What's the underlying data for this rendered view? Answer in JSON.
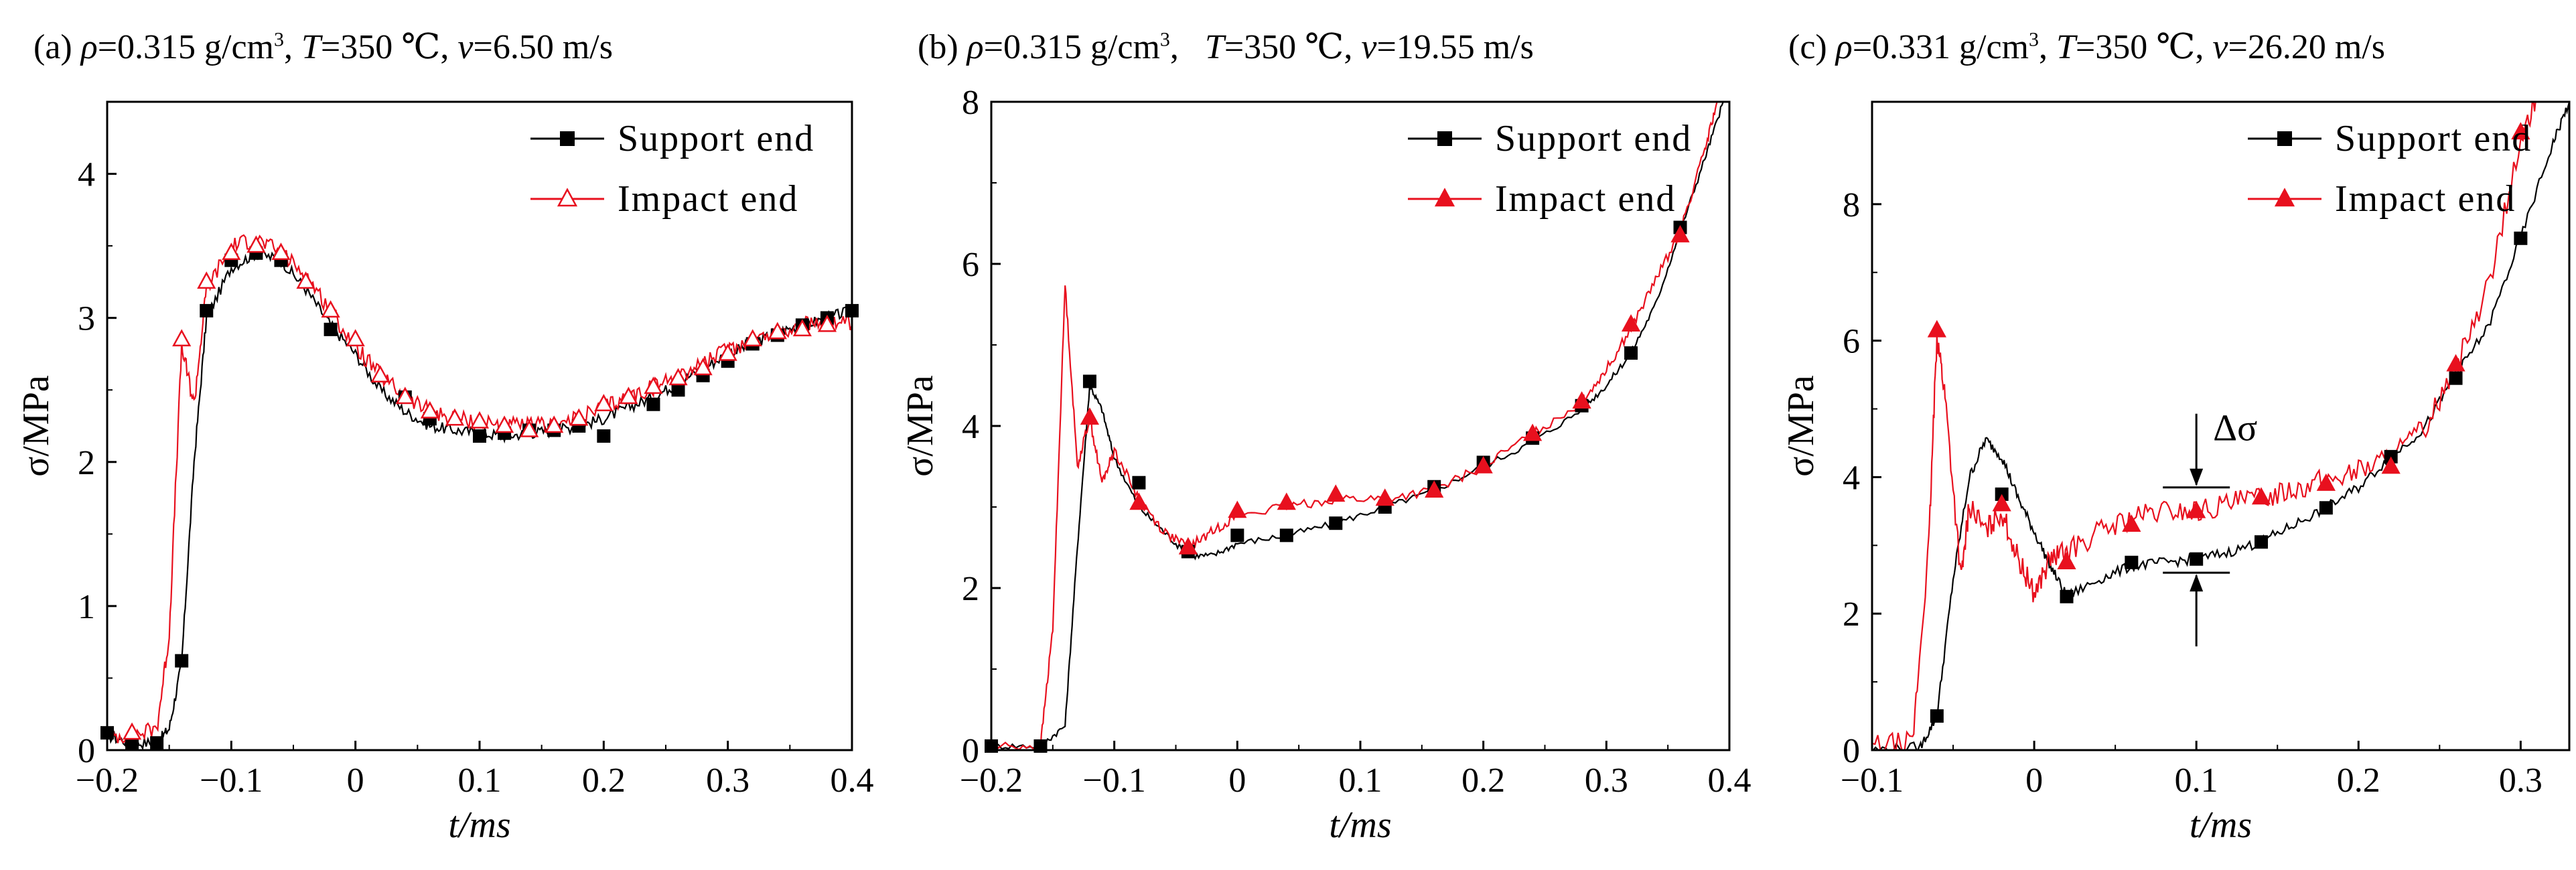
{
  "panels": [
    {
      "label": "(a)",
      "rho": "0.315 g/cm",
      "T": "350 ℃",
      "v": "6.50 m/s"
    },
    {
      "label": "(b)",
      "rho": "0.315 g/cm",
      "T": "350 ℃",
      "v": "19.55 m/s"
    },
    {
      "label": "(c)",
      "rho": "0.331 g/cm",
      "T": "350 ℃",
      "v": "26.20 m/s"
    }
  ],
  "title_symbols": {
    "rho": "ρ",
    "T": "T",
    "v": "v",
    "cube": "3"
  },
  "chart_data": [
    {
      "type": "line",
      "ylabel": "σ/MPa",
      "xlabel": "t/ms",
      "xlim": [
        -0.2,
        0.4
      ],
      "ylim": [
        0,
        4.5
      ],
      "xticks": [
        -0.2,
        -0.1,
        0,
        0.1,
        0.2,
        0.3,
        0.4
      ],
      "xtick_labels": [
        "−0.2",
        "−0.1",
        "0",
        "0.1",
        "0.2",
        "0.3",
        "0.4"
      ],
      "yticks": [
        0,
        1,
        2,
        3,
        4
      ],
      "ytick_labels": [
        "0",
        "1",
        "2",
        "3",
        "4"
      ],
      "legend_position": "top-right",
      "series": [
        {
          "name": "Support end",
          "color": "#000000",
          "marker": "filled-square",
          "x": [
            -0.2,
            -0.18,
            -0.16,
            -0.15,
            -0.14,
            -0.13,
            -0.12,
            -0.1,
            -0.08,
            -0.06,
            -0.04,
            -0.02,
            0,
            0.02,
            0.04,
            0.06,
            0.08,
            0.1,
            0.12,
            0.14,
            0.16,
            0.18,
            0.2,
            0.22,
            0.24,
            0.26,
            0.28,
            0.3,
            0.32,
            0.34,
            0.36,
            0.38,
            0.4
          ],
          "y": [
            0.1,
            0.05,
            0.05,
            0.15,
            0.6,
            2.0,
            3.0,
            3.35,
            3.45,
            3.4,
            3.2,
            2.95,
            2.75,
            2.5,
            2.35,
            2.25,
            2.22,
            2.2,
            2.18,
            2.2,
            2.22,
            2.25,
            2.3,
            2.38,
            2.45,
            2.55,
            2.65,
            2.75,
            2.82,
            2.9,
            2.95,
            3.0,
            3.05
          ],
          "markers_x": [
            -0.2,
            -0.18,
            -0.16,
            -0.14,
            -0.12,
            -0.1,
            -0.08,
            -0.06,
            -0.02,
            0.04,
            0.06,
            0.1,
            0.12,
            0.14,
            0.16,
            0.18,
            0.2,
            0.24,
            0.26,
            0.28,
            0.3,
            0.32,
            0.34,
            0.36,
            0.38,
            0.4
          ],
          "markers_y": [
            0.12,
            0.05,
            0.05,
            0.62,
            3.05,
            3.4,
            3.45,
            3.4,
            2.92,
            2.45,
            2.3,
            2.18,
            2.2,
            2.22,
            2.22,
            2.25,
            2.18,
            2.4,
            2.5,
            2.6,
            2.7,
            2.82,
            2.88,
            2.95,
            3.0,
            3.05
          ]
        },
        {
          "name": "Impact end",
          "color": "#e8101e",
          "marker": "open-triangle",
          "x": [
            -0.2,
            -0.18,
            -0.16,
            -0.15,
            -0.14,
            -0.13,
            -0.12,
            -0.1,
            -0.08,
            -0.06,
            -0.04,
            -0.02,
            0,
            0.02,
            0.04,
            0.06,
            0.08,
            0.1,
            0.12,
            0.14,
            0.16,
            0.18,
            0.2,
            0.22,
            0.24,
            0.26,
            0.28,
            0.3,
            0.32,
            0.34,
            0.36,
            0.38,
            0.4
          ],
          "y": [
            0.1,
            0.1,
            0.15,
            0.8,
            2.8,
            2.4,
            3.2,
            3.5,
            3.55,
            3.45,
            3.3,
            3.05,
            2.8,
            2.6,
            2.45,
            2.35,
            2.3,
            2.28,
            2.25,
            2.25,
            2.25,
            2.3,
            2.38,
            2.45,
            2.52,
            2.6,
            2.68,
            2.78,
            2.85,
            2.9,
            2.95,
            2.97,
            2.95
          ],
          "markers_x": [
            -0.18,
            -0.14,
            -0.12,
            -0.1,
            -0.08,
            -0.06,
            -0.04,
            -0.02,
            0,
            0.02,
            0.04,
            0.06,
            0.08,
            0.1,
            0.12,
            0.14,
            0.16,
            0.18,
            0.2,
            0.22,
            0.24,
            0.26,
            0.28,
            0.3,
            0.32,
            0.34,
            0.36,
            0.38
          ],
          "markers_y": [
            0.12,
            2.85,
            3.25,
            3.45,
            3.5,
            3.45,
            3.25,
            3.05,
            2.85,
            2.6,
            2.45,
            2.35,
            2.3,
            2.28,
            2.25,
            2.22,
            2.25,
            2.3,
            2.4,
            2.45,
            2.52,
            2.58,
            2.65,
            2.75,
            2.85,
            2.9,
            2.92,
            2.95
          ]
        }
      ]
    },
    {
      "type": "line",
      "ylabel": "σ/MPa",
      "xlabel": "t/ms",
      "xlim": [
        -0.2,
        0.4
      ],
      "ylim": [
        0,
        8
      ],
      "xticks": [
        -0.2,
        -0.1,
        0,
        0.1,
        0.2,
        0.3,
        0.4
      ],
      "xtick_labels": [
        "−0.2",
        "−0.1",
        "0",
        "0.1",
        "0.2",
        "0.3",
        "0.4"
      ],
      "yticks": [
        0,
        2,
        4,
        6,
        8
      ],
      "ytick_labels": [
        "0",
        "2",
        "4",
        "6",
        "8"
      ],
      "legend_position": "top-right",
      "series": [
        {
          "name": "Support end",
          "color": "#000000",
          "marker": "filled-square",
          "x": [
            -0.2,
            -0.16,
            -0.14,
            -0.13,
            -0.12,
            -0.11,
            -0.1,
            -0.08,
            -0.06,
            -0.04,
            -0.02,
            0,
            0.04,
            0.08,
            0.12,
            0.16,
            0.2,
            0.24,
            0.28,
            0.3,
            0.32,
            0.34,
            0.36,
            0.38,
            0.395
          ],
          "y": [
            0.05,
            0.05,
            0.3,
            2.5,
            4.5,
            4.2,
            3.6,
            3.0,
            2.7,
            2.4,
            2.4,
            2.55,
            2.65,
            2.8,
            3.0,
            3.2,
            3.5,
            3.8,
            4.2,
            4.5,
            4.9,
            5.5,
            6.4,
            7.3,
            8.0
          ],
          "markers_x": [
            -0.2,
            -0.16,
            -0.12,
            -0.08,
            -0.04,
            0,
            0.04,
            0.08,
            0.12,
            0.16,
            0.2,
            0.24,
            0.28,
            0.32,
            0.36
          ],
          "markers_y": [
            0.05,
            0.05,
            4.55,
            3.3,
            2.45,
            2.65,
            2.65,
            2.8,
            3.0,
            3.25,
            3.55,
            3.85,
            4.25,
            4.9,
            6.45
          ]
        },
        {
          "name": "Impact end",
          "color": "#e8101e",
          "marker": "filled-triangle",
          "x": [
            -0.2,
            -0.16,
            -0.15,
            -0.14,
            -0.13,
            -0.12,
            -0.11,
            -0.1,
            -0.08,
            -0.06,
            -0.04,
            -0.02,
            0,
            0.04,
            0.08,
            0.12,
            0.16,
            0.2,
            0.24,
            0.28,
            0.3,
            0.32,
            0.34,
            0.36,
            0.38,
            0.39
          ],
          "y": [
            0.05,
            0.05,
            1.5,
            5.75,
            3.5,
            4.1,
            3.3,
            3.7,
            3.1,
            2.7,
            2.5,
            2.7,
            2.9,
            3.0,
            3.1,
            3.1,
            3.2,
            3.5,
            3.9,
            4.3,
            4.7,
            5.2,
            5.8,
            6.4,
            7.4,
            8.0
          ],
          "markers_x": [
            -0.12,
            -0.08,
            -0.04,
            0,
            0.04,
            0.08,
            0.12,
            0.16,
            0.2,
            0.24,
            0.28,
            0.32,
            0.36
          ],
          "markers_y": [
            4.1,
            3.05,
            2.5,
            2.95,
            3.05,
            3.15,
            3.1,
            3.2,
            3.5,
            3.9,
            4.3,
            5.25,
            6.35
          ]
        }
      ]
    },
    {
      "type": "line",
      "ylabel": "σ/MPa",
      "xlabel": "t/ms",
      "xlim": [
        -0.1,
        0.33
      ],
      "ylim": [
        0,
        9.5
      ],
      "xticks": [
        -0.1,
        0,
        0.1,
        0.2,
        0.3
      ],
      "xtick_labels": [
        "−0.1",
        "0",
        "0.1",
        "0.2",
        "0.3"
      ],
      "yticks": [
        0,
        2,
        4,
        6,
        8
      ],
      "ytick_labels": [
        "0",
        "2",
        "4",
        "6",
        "8"
      ],
      "legend_position": "top-right",
      "annotations": [
        {
          "text": "Δσ"
        }
      ],
      "series": [
        {
          "name": "Support end",
          "color": "#000000",
          "marker": "filled-square",
          "x": [
            -0.1,
            -0.07,
            -0.06,
            -0.05,
            -0.04,
            -0.03,
            -0.02,
            -0.01,
            0,
            0.01,
            0.02,
            0.04,
            0.06,
            0.08,
            0.1,
            0.12,
            0.14,
            0.16,
            0.18,
            0.2,
            0.22,
            0.24,
            0.26,
            0.28,
            0.3,
            0.32,
            0.33
          ],
          "y": [
            0.0,
            0.05,
            0.5,
            2.5,
            4.0,
            4.55,
            4.3,
            3.7,
            3.2,
            2.7,
            2.25,
            2.5,
            2.7,
            2.75,
            2.8,
            2.9,
            3.05,
            3.3,
            3.55,
            3.85,
            4.3,
            4.7,
            5.5,
            6.2,
            7.5,
            8.9,
            9.5
          ],
          "markers_x": [
            -0.06,
            -0.02,
            0.02,
            0.06,
            0.1,
            0.14,
            0.18,
            0.22,
            0.26,
            0.3
          ],
          "markers_y": [
            0.5,
            3.75,
            2.25,
            2.75,
            2.8,
            3.05,
            3.55,
            4.3,
            5.45,
            7.5
          ]
        },
        {
          "name": "Impact end",
          "color": "#e8101e",
          "marker": "filled-triangle",
          "x": [
            -0.1,
            -0.075,
            -0.065,
            -0.06,
            -0.055,
            -0.045,
            -0.04,
            -0.03,
            -0.02,
            -0.01,
            0,
            0.01,
            0.02,
            0.04,
            0.06,
            0.08,
            0.1,
            0.12,
            0.14,
            0.16,
            0.18,
            0.2,
            0.22,
            0.24,
            0.26,
            0.28,
            0.3,
            0.31
          ],
          "y": [
            0.05,
            0.1,
            3.0,
            6.1,
            5.2,
            2.5,
            3.6,
            3.2,
            3.5,
            2.8,
            2.3,
            2.8,
            2.9,
            3.2,
            3.4,
            3.5,
            3.5,
            3.6,
            3.7,
            3.85,
            3.95,
            4.1,
            4.3,
            4.7,
            5.6,
            6.8,
            8.9,
            9.5
          ],
          "markers_x": [
            -0.06,
            -0.02,
            0.02,
            0.06,
            0.1,
            0.14,
            0.18,
            0.22,
            0.26,
            0.3
          ],
          "markers_y": [
            6.15,
            3.6,
            2.75,
            3.3,
            3.5,
            3.7,
            3.9,
            4.15,
            5.65,
            9.05
          ]
        }
      ]
    }
  ]
}
